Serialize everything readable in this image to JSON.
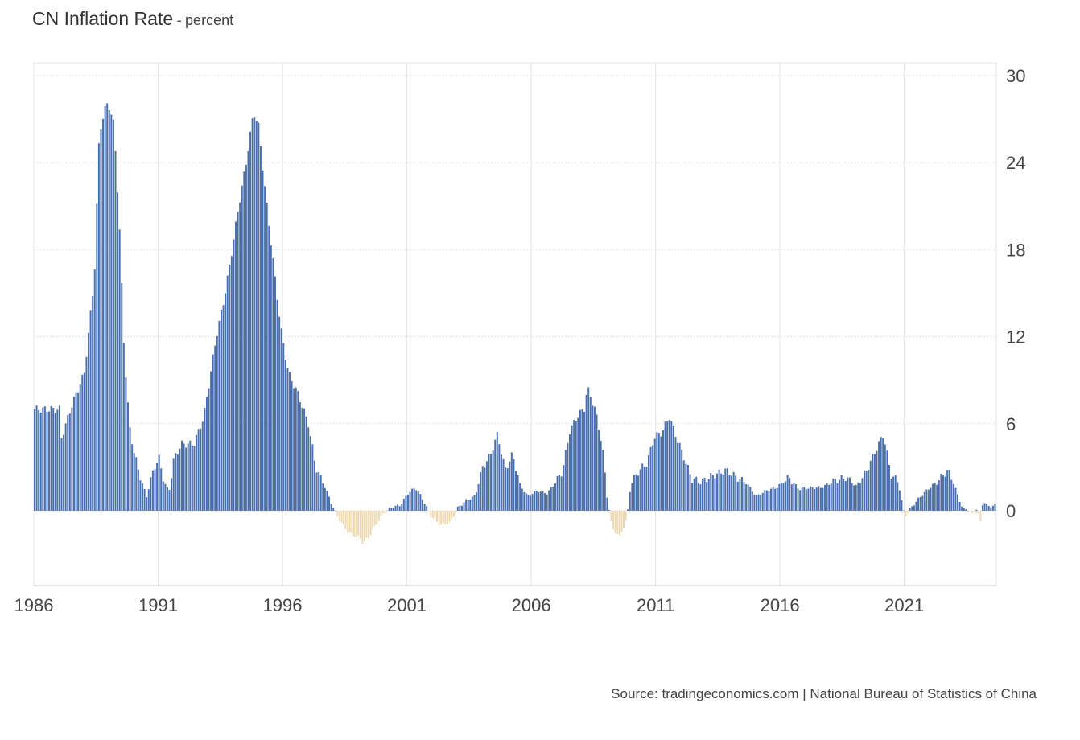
{
  "title": "CN Inflation Rate",
  "title_separator": "-",
  "unit": "percent",
  "source": "Source: tradingeconomics.com | National Bureau of Statistics of China",
  "colors": {
    "positive": "#4a6fae",
    "negative": "#ecd9b0",
    "grid": "#e3e3e3",
    "axis": "#cccccc",
    "text": "#444444"
  },
  "chart_data": {
    "type": "bar",
    "title": "CN Inflation Rate",
    "ylabel": "percent",
    "xlabel": "",
    "frequency": "monthly",
    "x_start": 1986.0,
    "x_end": 2024.7,
    "ylim": [
      -5,
      30
    ],
    "y_ticks": [
      0,
      6,
      12,
      18,
      24,
      30
    ],
    "x_ticks": [
      1986,
      1991,
      1996,
      2001,
      2006,
      2011,
      2016,
      2021
    ],
    "grid": true,
    "y_axis_position": "right",
    "keypoints": [
      [
        1986.0,
        7.0
      ],
      [
        1987.0,
        7.0
      ],
      [
        1987.08,
        5.0
      ],
      [
        1987.5,
        7.3
      ],
      [
        1988.0,
        9.5
      ],
      [
        1988.4,
        16
      ],
      [
        1988.6,
        26
      ],
      [
        1988.8,
        27.5
      ],
      [
        1988.95,
        28.2
      ],
      [
        1989.2,
        26.5
      ],
      [
        1989.4,
        20
      ],
      [
        1989.6,
        11
      ],
      [
        1989.8,
        6
      ],
      [
        1990.0,
        4
      ],
      [
        1990.3,
        2
      ],
      [
        1990.5,
        1.0
      ],
      [
        1990.8,
        3.0
      ],
      [
        1991.0,
        3.6
      ],
      [
        1991.2,
        2.0
      ],
      [
        1991.4,
        1.3
      ],
      [
        1991.6,
        3.6
      ],
      [
        1991.9,
        4.6
      ],
      [
        1992.4,
        4.6
      ],
      [
        1992.8,
        6.5
      ],
      [
        1993.3,
        12.0
      ],
      [
        1993.6,
        14.5
      ],
      [
        1993.8,
        16.5
      ],
      [
        1994.2,
        21.0
      ],
      [
        1994.5,
        24.0
      ],
      [
        1994.8,
        27.5
      ],
      [
        1995.0,
        26.5
      ],
      [
        1995.3,
        21.5
      ],
      [
        1995.6,
        17.0
      ],
      [
        1995.9,
        12.5
      ],
      [
        1996.2,
        9.5
      ],
      [
        1996.6,
        8.0
      ],
      [
        1997.0,
        6.0
      ],
      [
        1997.3,
        3.0
      ],
      [
        1997.7,
        1.5
      ],
      [
        1998.0,
        0.2
      ],
      [
        1998.2,
        -0.5
      ],
      [
        1998.6,
        -1.5
      ],
      [
        1999.0,
        -1.8
      ],
      [
        1999.3,
        -2.2
      ],
      [
        1999.7,
        -1.0
      ],
      [
        2000.0,
        -0.2
      ],
      [
        2000.3,
        0.2
      ],
      [
        2000.7,
        0.4
      ],
      [
        2001.0,
        1.2
      ],
      [
        2001.3,
        1.6
      ],
      [
        2001.6,
        0.8
      ],
      [
        2001.9,
        -0.3
      ],
      [
        2002.3,
        -1.0
      ],
      [
        2002.7,
        -0.8
      ],
      [
        2003.0,
        0.2
      ],
      [
        2003.4,
        0.8
      ],
      [
        2003.7,
        1.0
      ],
      [
        2004.0,
        3.0
      ],
      [
        2004.3,
        3.8
      ],
      [
        2004.6,
        5.3
      ],
      [
        2004.9,
        2.8
      ],
      [
        2005.2,
        3.9
      ],
      [
        2005.5,
        1.8
      ],
      [
        2005.8,
        1.0
      ],
      [
        2006.2,
        1.4
      ],
      [
        2006.6,
        1.2
      ],
      [
        2006.9,
        1.9
      ],
      [
        2007.2,
        2.7
      ],
      [
        2007.5,
        5.5
      ],
      [
        2007.8,
        6.5
      ],
      [
        2008.1,
        7.1
      ],
      [
        2008.2,
        8.5
      ],
      [
        2008.5,
        7.1
      ],
      [
        2008.8,
        4.6
      ],
      [
        2009.0,
        1.0
      ],
      [
        2009.2,
        -1.2
      ],
      [
        2009.5,
        -1.8
      ],
      [
        2009.8,
        -0.5
      ],
      [
        2009.95,
        1.9
      ],
      [
        2010.3,
        2.8
      ],
      [
        2010.6,
        3.3
      ],
      [
        2010.9,
        5.1
      ],
      [
        2011.2,
        5.4
      ],
      [
        2011.5,
        6.5
      ],
      [
        2011.8,
        5.0
      ],
      [
        2012.0,
        4.1
      ],
      [
        2012.4,
        2.2
      ],
      [
        2012.8,
        2.0
      ],
      [
        2013.2,
        2.4
      ],
      [
        2013.8,
        2.8
      ],
      [
        2014.2,
        2.3
      ],
      [
        2014.6,
        1.9
      ],
      [
        2015.0,
        1.0
      ],
      [
        2015.4,
        1.4
      ],
      [
        2015.8,
        1.6
      ],
      [
        2016.3,
        2.3
      ],
      [
        2016.7,
        1.5
      ],
      [
        2017.2,
        1.6
      ],
      [
        2017.6,
        1.6
      ],
      [
        2018.2,
        2.1
      ],
      [
        2018.6,
        2.3
      ],
      [
        2019.0,
        1.7
      ],
      [
        2019.4,
        2.7
      ],
      [
        2019.8,
        4.2
      ],
      [
        2020.1,
        5.3
      ],
      [
        2020.4,
        2.5
      ],
      [
        2020.7,
        2.0
      ],
      [
        2020.9,
        0.0
      ],
      [
        2021.0,
        -0.3
      ],
      [
        2021.3,
        0.4
      ],
      [
        2021.6,
        1.0
      ],
      [
        2021.9,
        1.5
      ],
      [
        2022.3,
        2.1
      ],
      [
        2022.7,
        2.8
      ],
      [
        2022.9,
        2.0
      ],
      [
        2023.1,
        1.0
      ],
      [
        2023.3,
        0.1
      ],
      [
        2023.55,
        0.1
      ],
      [
        2023.65,
        -0.3
      ],
      [
        2023.85,
        0.2
      ],
      [
        2024.0,
        -0.8
      ],
      [
        2024.1,
        0.7
      ],
      [
        2024.3,
        0.3
      ],
      [
        2024.7,
        0.4
      ]
    ]
  }
}
